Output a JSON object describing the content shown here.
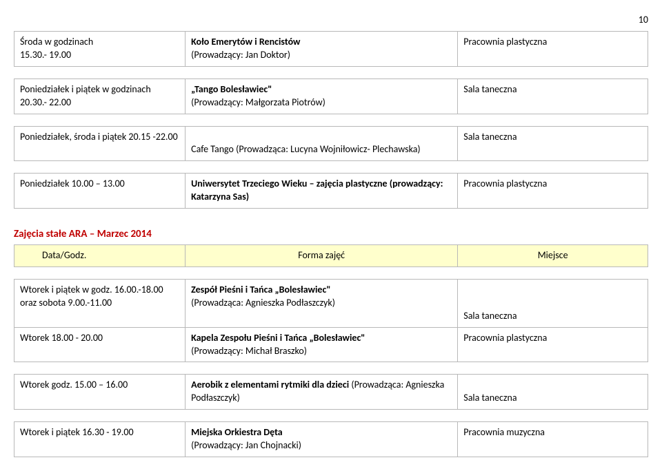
{
  "page_number": "10",
  "table1": {
    "rows": [
      {
        "c1_a": "Środa w godzinach",
        "c1_b": "15.30.- 19.00",
        "c2_a": "Koło Emerytów i Rencistów",
        "c2_b": "(Prowadzący: Jan Doktor)",
        "c3": "Pracownia plastyczna"
      },
      {
        "c1_a": "Poniedziałek i piątek w godzinach 20.30.- 22.00",
        "c2_a": "„Tango Bolesławiec\"",
        "c2_b": "(Prowadzący: Małgorzata Piotrów)",
        "c3": "Sala taneczna"
      },
      {
        "c1_a": "Poniedziałek, środa i piątek 20.15 -22.00",
        "c2_a": "Cafe Tango (Prowadząca: Lucyna Wojniłowicz- Plechawska)",
        "c3": "Sala taneczna"
      },
      {
        "c1_a": "Poniedziałek 10.00 – 13.00",
        "c2_a": "Uniwersytet Trzeciego Wieku – zajęcia plastyczne (prowadzący: Katarzyna Sas)",
        "c3": "Pracownia plastyczna"
      }
    ]
  },
  "section2_title": "Zajęcia stałe  ARA  – Marzec 2014",
  "table2": {
    "headers": {
      "h1": "Data/Godz.",
      "h2": "Forma zajęć",
      "h3": "Miejsce"
    },
    "rows": [
      {
        "c1_a": "Wtorek i piątek w godz. 16.00.-18.00 oraz sobota 9.00.-11.00",
        "c2_a": "Zespół Pieśni i Tańca „Bolesławiec\"",
        "c2_b": "(Prowadząca: Agnieszka Podłaszczyk)",
        "c3": "Sala taneczna"
      },
      {
        "c1_a": "Wtorek 18.00 - 20.00",
        "c2_a": "Kapela Zespołu Pieśni i Tańca „Bolesławiec\"",
        "c2_b": "(Prowadzący: Michał Braszko)",
        "c3": "Pracownia plastyczna"
      },
      {
        "c1_a": "Wtorek godz. 15.00 – 16.00",
        "c2_a": "Aerobik z elementami rytmiki dla dzieci",
        "c2_b": " (Prowadząca: Agnieszka Podłaszczyk)",
        "c3": "Sala taneczna"
      },
      {
        "c1_a": "Wtorek i piątek 16.30 - 19.00",
        "c2_a": "Miejska Orkiestra Dęta",
        "c2_b": "(Prowadzący: Jan Chojnacki)",
        "c3": "Pracownia muzyczna"
      }
    ]
  }
}
